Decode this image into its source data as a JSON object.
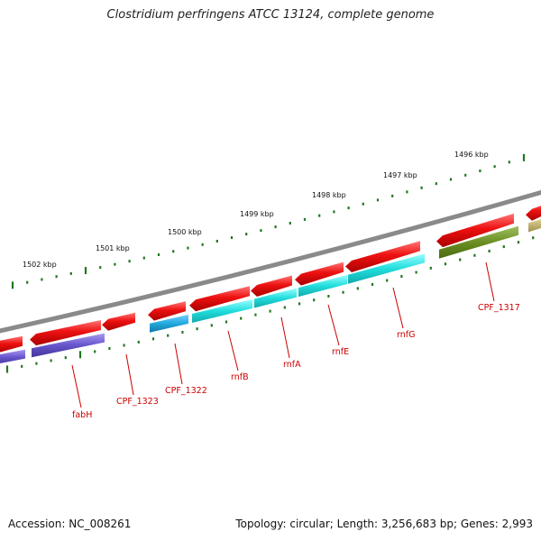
{
  "title": "Clostridium perfringens ATCC 13124, complete genome",
  "footer": {
    "accession": "Accession: NC_008261",
    "topology": "Topology: circular; Length: 3,256,683 bp; Genes: 2,993"
  },
  "scale_labels": [
    "1496 kbp",
    "1497 kbp",
    "1498 kbp",
    "1499 kbp",
    "1500 kbp",
    "1501 kbp",
    "1502 kbp"
  ],
  "gene_labels": [
    "CPF_1317",
    "rnfG",
    "rnfE",
    "rnfA",
    "rnfB",
    "CPF_1322",
    "CPF_1323",
    "fabH"
  ],
  "colors": {
    "backbone": "#8a8a8a",
    "cds": "#ee1111",
    "rnf": "#22dddd",
    "cpf1322": "#22aadd",
    "fabH": "#6655cc",
    "cpf1317": "#6b8e23",
    "olive": "#c8b878",
    "tick": "#227722",
    "label": "#cc0000"
  }
}
